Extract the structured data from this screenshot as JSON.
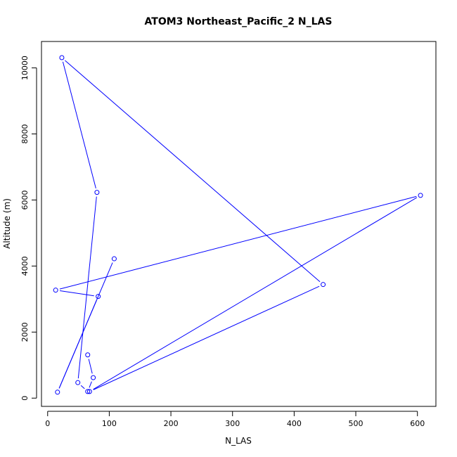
{
  "chart_data": {
    "type": "line",
    "title": "ATOM3 Northeast_Pacific_2 N_LAS",
    "xlabel": "N_LAS",
    "ylabel": "Altitude (m)",
    "xlim": [
      -10,
      630
    ],
    "ylim": [
      -250,
      10800
    ],
    "x_ticks": [
      0,
      100,
      200,
      300,
      400,
      500,
      600
    ],
    "y_ticks": [
      0,
      2000,
      4000,
      6000,
      8000,
      10000
    ],
    "line_color": "#0000ff",
    "marker": "open-circle",
    "grid": false,
    "series": [
      {
        "points": [
          {
            "x": 108,
            "y": 4220
          },
          {
            "x": 16,
            "y": 180
          },
          {
            "x": 82,
            "y": 3080
          },
          {
            "x": 13,
            "y": 3270
          },
          {
            "x": 605,
            "y": 6140
          },
          {
            "x": 68,
            "y": 200
          },
          {
            "x": 447,
            "y": 3440
          },
          {
            "x": 23,
            "y": 10310
          },
          {
            "x": 80,
            "y": 6230
          },
          {
            "x": 49,
            "y": 470
          },
          {
            "x": 65,
            "y": 200
          },
          {
            "x": 74,
            "y": 620
          },
          {
            "x": 65,
            "y": 1310
          }
        ]
      }
    ]
  }
}
